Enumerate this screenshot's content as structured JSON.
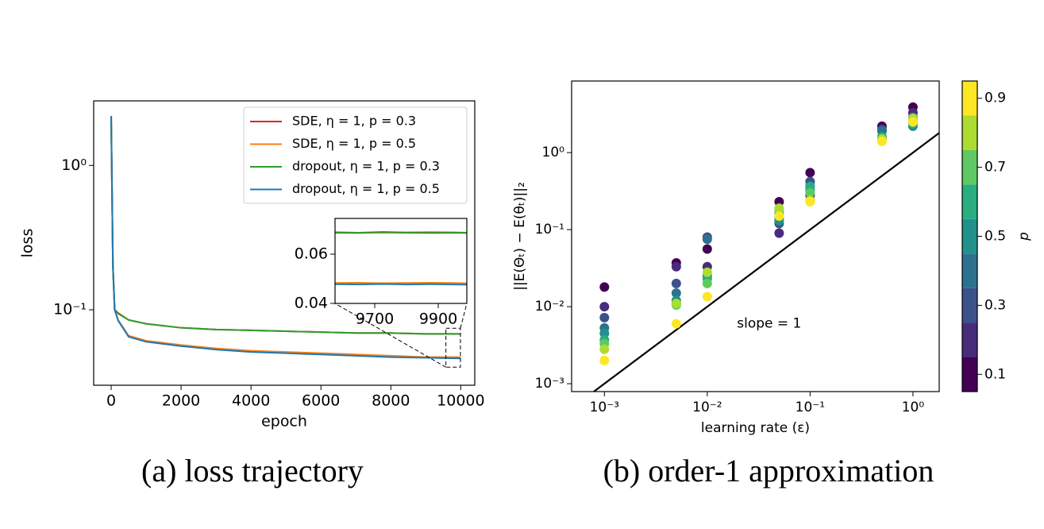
{
  "chart_data": [
    {
      "type": "line",
      "xlabel": "epoch",
      "ylabel": "loss",
      "yscale": "log",
      "x": [
        0,
        50,
        100,
        200,
        500,
        1000,
        2000,
        3000,
        4000,
        5000,
        6000,
        7000,
        8000,
        9000,
        10000
      ],
      "xlim": [
        -500,
        10400
      ],
      "xticks": [
        0,
        2000,
        4000,
        6000,
        8000,
        10000
      ],
      "ylim": [
        0.03,
        2.8
      ],
      "yticks": [
        {
          "value": 0.1,
          "label": "10⁻¹"
        },
        {
          "value": 1,
          "label": "10⁰"
        }
      ],
      "legend": "upper right",
      "series": [
        {
          "name": "SDE, η = 1, p = 0.3",
          "color": "#d62728",
          "values": [
            2.2,
            0.2,
            0.1,
            0.095,
            0.085,
            0.08,
            0.075,
            0.073,
            0.072,
            0.071,
            0.07,
            0.069,
            0.069,
            0.068,
            0.068
          ]
        },
        {
          "name": "SDE, η = 1, p = 0.5",
          "color": "#ff7f0e",
          "values": [
            2.2,
            0.2,
            0.1,
            0.085,
            0.066,
            0.061,
            0.057,
            0.054,
            0.052,
            0.051,
            0.05,
            0.049,
            0.048,
            0.047,
            0.047
          ]
        },
        {
          "name": "dropout, η = 1, p = 0.3",
          "color": "#2ca02c",
          "values": [
            2.2,
            0.2,
            0.1,
            0.094,
            0.085,
            0.08,
            0.075,
            0.073,
            0.072,
            0.071,
            0.07,
            0.069,
            0.069,
            0.068,
            0.068
          ]
        },
        {
          "name": "dropout, η = 1, p = 0.5",
          "color": "#1f77b4",
          "values": [
            2.2,
            0.2,
            0.1,
            0.084,
            0.065,
            0.06,
            0.056,
            0.053,
            0.051,
            0.05,
            0.049,
            0.048,
            0.047,
            0.0465,
            0.046
          ]
        }
      ]
    },
    {
      "type": "line",
      "x": [
        9575,
        9650,
        9725,
        9800,
        9875,
        9950,
        9990
      ],
      "xlim": [
        9575,
        9990
      ],
      "xticks": [
        9700,
        9900
      ],
      "ylim": [
        0.04,
        0.0745
      ],
      "yticks": [
        0.04,
        0.06
      ],
      "series": [
        {
          "color": "#d62728",
          "values": [
            0.0687,
            0.0686,
            0.0688,
            0.0687,
            0.0686,
            0.0687,
            0.0686
          ]
        },
        {
          "color": "#ff7f0e",
          "values": [
            0.0483,
            0.0484,
            0.0482,
            0.0483,
            0.0484,
            0.0483,
            0.0482
          ]
        },
        {
          "color": "#2ca02c",
          "values": [
            0.0689,
            0.0687,
            0.069,
            0.0688,
            0.0689,
            0.0688,
            0.0687
          ]
        },
        {
          "color": "#1f77b4",
          "values": [
            0.0478,
            0.0477,
            0.0479,
            0.0477,
            0.0478,
            0.0477,
            0.0476
          ]
        }
      ]
    },
    {
      "type": "scatter",
      "xlabel": "learning rate (ε)",
      "ylabel": "||E(Θₜ) − E(θₜ)||₂",
      "xscale": "log",
      "yscale": "log",
      "x": [
        0.001,
        0.005,
        0.01,
        0.05,
        0.1,
        0.5,
        1
      ],
      "xlim": [
        0.00048,
        1.8
      ],
      "xticks": [
        {
          "value": 0.001,
          "label": "10⁻³"
        },
        {
          "value": 0.01,
          "label": "10⁻²"
        },
        {
          "value": 0.1,
          "label": "10⁻¹"
        },
        {
          "value": 1,
          "label": "10⁰"
        }
      ],
      "ylim": [
        0.00079,
        8.5
      ],
      "yticks": [
        {
          "value": 0.001,
          "label": "10⁻³"
        },
        {
          "value": 0.01,
          "label": "10⁻²"
        },
        {
          "value": 0.1,
          "label": "10⁻¹"
        },
        {
          "value": 1,
          "label": "10⁰"
        }
      ],
      "series": [
        {
          "p": 0.1,
          "color": "#440154",
          "values": [
            0.018,
            0.037,
            0.056,
            0.23,
            0.55,
            2.2,
            3.9
          ]
        },
        {
          "p": 0.2,
          "color": "#472d7b",
          "values": [
            0.01,
            0.033,
            0.033,
            0.09,
            0.28,
            1.6,
            3.3
          ]
        },
        {
          "p": 0.3,
          "color": "#3b528b",
          "values": [
            0.0072,
            0.02,
            0.08,
            0.12,
            0.42,
            2.0,
            2.9
          ]
        },
        {
          "p": 0.4,
          "color": "#2c728e",
          "values": [
            0.0053,
            0.015,
            0.075,
            0.14,
            0.37,
            1.9,
            2.6
          ]
        },
        {
          "p": 0.5,
          "color": "#21918c",
          "values": [
            0.0045,
            0.012,
            0.025,
            0.13,
            0.33,
            1.5,
            2.2
          ]
        },
        {
          "p": 0.6,
          "color": "#28ae80",
          "values": [
            0.0037,
            0.011,
            0.023,
            0.16,
            0.36,
            1.6,
            2.4
          ]
        },
        {
          "p": 0.7,
          "color": "#5ec962",
          "values": [
            0.0033,
            0.0105,
            0.02,
            0.18,
            0.3,
            1.45,
            2.7
          ]
        },
        {
          "p": 0.8,
          "color": "#addc30",
          "values": [
            0.0028,
            0.011,
            0.028,
            0.19,
            0.24,
            1.5,
            2.8
          ]
        },
        {
          "p": 0.9,
          "color": "#fde725",
          "values": [
            0.002,
            0.006,
            0.0135,
            0.15,
            0.23,
            1.4,
            2.5
          ]
        }
      ],
      "lines": [
        {
          "color": "#000000",
          "x": [
            0.00079,
            1.8
          ],
          "values": [
            0.00079,
            1.8
          ]
        }
      ],
      "annotations": [
        {
          "text": "slope = 1",
          "x": 0.04,
          "y": 0.006
        }
      ],
      "colorbar": {
        "label": "p",
        "lim": [
          0.05,
          0.95
        ],
        "ticks": [
          0.1,
          0.3,
          0.5,
          0.7,
          0.9
        ]
      }
    }
  ],
  "captions": [
    "(a) loss trajectory",
    "(b) order-1 approximation"
  ]
}
